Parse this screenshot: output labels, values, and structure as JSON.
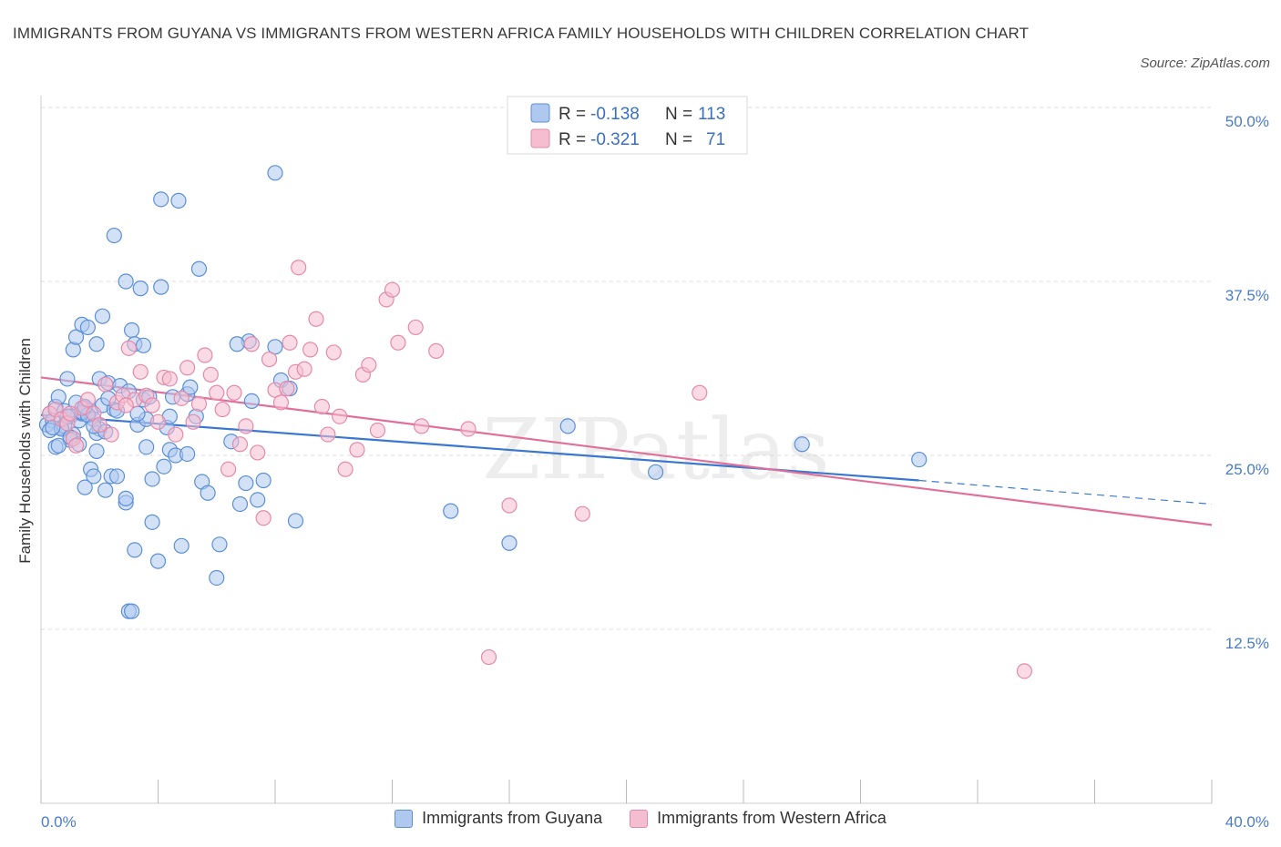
{
  "title": "IMMIGRANTS FROM GUYANA VS IMMIGRANTS FROM WESTERN AFRICA FAMILY HOUSEHOLDS WITH CHILDREN CORRELATION CHART",
  "source": "Source: ZipAtlas.com",
  "watermark": "ZIPatlas",
  "colors": {
    "guyana_fill": "#aec8f0",
    "guyana_stroke": "#5b8fd6",
    "guyana_line": "#3a78d0",
    "wafrica_fill": "#f5bdd0",
    "wafrica_stroke": "#e48aaa",
    "wafrica_line": "#e0709a",
    "tick_text": "#4a7cc9",
    "grid": "#dddddd"
  },
  "legend": {
    "r_label": "R =",
    "n_label": "N =",
    "guyana": {
      "r": "-0.138",
      "n": "113"
    },
    "wafrica": {
      "r": "-0.321",
      "n": "71"
    }
  },
  "chart_data": {
    "type": "scatter",
    "xlabel": "",
    "ylabel": "Family Households with Children",
    "xlim": [
      0,
      40
    ],
    "ylim": [
      0,
      50
    ],
    "x_tick_labels": [
      "0.0%",
      "40.0%"
    ],
    "y_tick_labels": [
      "12.5%",
      "25.0%",
      "37.5%",
      "50.0%"
    ],
    "y_ticks": [
      12.5,
      25.0,
      37.5,
      50.0
    ],
    "grid": "horizontal dashed",
    "legend_position": "top-center",
    "series": [
      {
        "name": "Immigrants from Guyana",
        "trend": {
          "x": [
            0,
            30
          ],
          "y": [
            27.9,
            23.2
          ],
          "dashed_extension_to": [
            40,
            21.5
          ]
        },
        "points": [
          [
            0.2,
            27.2
          ],
          [
            0.3,
            28.0
          ],
          [
            0.4,
            27.5
          ],
          [
            0.5,
            28.5
          ],
          [
            0.6,
            29.2
          ],
          [
            0.7,
            27.0
          ],
          [
            0.8,
            28.2
          ],
          [
            0.9,
            30.5
          ],
          [
            1.0,
            27.8
          ],
          [
            1.1,
            26.5
          ],
          [
            1.2,
            28.8
          ],
          [
            1.3,
            27.5
          ],
          [
            1.4,
            28.0
          ],
          [
            1.5,
            28.4
          ],
          [
            1.6,
            27.9
          ],
          [
            1.7,
            28.2
          ],
          [
            1.8,
            27.6
          ],
          [
            1.9,
            25.3
          ],
          [
            2.0,
            26.9
          ],
          [
            2.1,
            28.6
          ],
          [
            0.3,
            26.8
          ],
          [
            0.5,
            25.6
          ],
          [
            0.8,
            27.1
          ],
          [
            1.0,
            26.1
          ],
          [
            1.1,
            32.6
          ],
          [
            1.2,
            33.5
          ],
          [
            1.4,
            34.4
          ],
          [
            1.6,
            34.2
          ],
          [
            1.9,
            33.0
          ],
          [
            2.1,
            35.0
          ],
          [
            2.0,
            30.5
          ],
          [
            2.3,
            30.2
          ],
          [
            2.5,
            28.3
          ],
          [
            2.7,
            30.0
          ],
          [
            2.9,
            37.5
          ],
          [
            3.1,
            34.0
          ],
          [
            3.2,
            33.0
          ],
          [
            3.3,
            27.2
          ],
          [
            3.5,
            29.0
          ],
          [
            3.6,
            27.6
          ],
          [
            2.5,
            40.8
          ],
          [
            3.4,
            37.0
          ],
          [
            4.1,
            43.4
          ],
          [
            4.7,
            43.3
          ],
          [
            4.1,
            37.1
          ],
          [
            5.4,
            38.4
          ],
          [
            7.1,
            33.2
          ],
          [
            8.0,
            45.3
          ],
          [
            3.5,
            32.9
          ],
          [
            4.5,
            29.2
          ],
          [
            1.5,
            22.7
          ],
          [
            1.7,
            24.0
          ],
          [
            1.8,
            23.5
          ],
          [
            2.2,
            22.5
          ],
          [
            2.4,
            23.5
          ],
          [
            2.6,
            23.5
          ],
          [
            2.9,
            21.6
          ],
          [
            2.9,
            21.9
          ],
          [
            3.0,
            13.8
          ],
          [
            3.1,
            13.8
          ],
          [
            3.2,
            18.2
          ],
          [
            3.6,
            25.6
          ],
          [
            3.8,
            20.2
          ],
          [
            3.8,
            23.3
          ],
          [
            4.0,
            17.4
          ],
          [
            4.2,
            24.2
          ],
          [
            4.3,
            27.0
          ],
          [
            4.4,
            25.4
          ],
          [
            4.6,
            25.0
          ],
          [
            4.8,
            18.5
          ],
          [
            5.0,
            29.4
          ],
          [
            5.1,
            29.9
          ],
          [
            5.3,
            27.8
          ],
          [
            5.5,
            23.1
          ],
          [
            5.7,
            22.3
          ],
          [
            6.0,
            16.2
          ],
          [
            6.1,
            18.6
          ],
          [
            6.5,
            26.0
          ],
          [
            6.8,
            21.5
          ],
          [
            7.0,
            23.0
          ],
          [
            7.4,
            21.8
          ],
          [
            7.6,
            23.2
          ],
          [
            8.0,
            32.8
          ],
          [
            8.2,
            30.4
          ],
          [
            8.5,
            29.8
          ],
          [
            8.7,
            20.3
          ],
          [
            1.4,
            28.1
          ],
          [
            1.6,
            27.9
          ],
          [
            1.9,
            26.6
          ],
          [
            2.3,
            29.1
          ],
          [
            0.6,
            25.7
          ],
          [
            0.7,
            26.9
          ],
          [
            0.9,
            27.8
          ],
          [
            1.0,
            26.3
          ],
          [
            1.3,
            25.8
          ],
          [
            1.5,
            28.5
          ],
          [
            1.8,
            27.1
          ],
          [
            2.2,
            26.7
          ],
          [
            2.6,
            28.2
          ],
          [
            3.0,
            29.6
          ],
          [
            3.3,
            28.0
          ],
          [
            3.7,
            29.2
          ],
          [
            4.4,
            27.8
          ],
          [
            5.0,
            25.1
          ],
          [
            6.7,
            33.0
          ],
          [
            7.2,
            28.9
          ],
          [
            14.0,
            21.0
          ],
          [
            16.0,
            18.7
          ],
          [
            18.0,
            27.1
          ],
          [
            21.0,
            23.8
          ],
          [
            26.0,
            25.8
          ],
          [
            30.0,
            24.7
          ],
          [
            0.4,
            27.0
          ]
        ]
      },
      {
        "name": "Immigrants from Western Africa",
        "trend": {
          "x": [
            0,
            40
          ],
          "y": [
            30.6,
            20.0
          ]
        },
        "points": [
          [
            0.3,
            28.0
          ],
          [
            0.5,
            28.3
          ],
          [
            0.7,
            27.6
          ],
          [
            0.9,
            27.3
          ],
          [
            1.1,
            26.2
          ],
          [
            1.2,
            25.7
          ],
          [
            1.4,
            28.4
          ],
          [
            1.6,
            29.0
          ],
          [
            1.8,
            28.0
          ],
          [
            2.0,
            27.2
          ],
          [
            2.2,
            30.1
          ],
          [
            2.4,
            26.5
          ],
          [
            2.6,
            28.8
          ],
          [
            2.8,
            29.3
          ],
          [
            3.0,
            32.7
          ],
          [
            3.2,
            29.0
          ],
          [
            3.4,
            31.0
          ],
          [
            3.6,
            29.3
          ],
          [
            3.8,
            28.6
          ],
          [
            4.0,
            27.4
          ],
          [
            4.2,
            30.6
          ],
          [
            4.4,
            30.5
          ],
          [
            4.6,
            26.5
          ],
          [
            4.8,
            29.1
          ],
          [
            5.0,
            31.3
          ],
          [
            5.2,
            27.4
          ],
          [
            5.4,
            28.7
          ],
          [
            5.6,
            32.2
          ],
          [
            5.8,
            30.8
          ],
          [
            6.0,
            29.5
          ],
          [
            6.2,
            28.3
          ],
          [
            6.4,
            24.0
          ],
          [
            6.6,
            29.5
          ],
          [
            6.8,
            25.8
          ],
          [
            7.0,
            27.1
          ],
          [
            7.2,
            33.0
          ],
          [
            7.4,
            25.2
          ],
          [
            7.6,
            20.5
          ],
          [
            7.8,
            31.9
          ],
          [
            8.0,
            29.7
          ],
          [
            8.2,
            28.8
          ],
          [
            8.4,
            29.8
          ],
          [
            8.5,
            33.1
          ],
          [
            8.7,
            31.0
          ],
          [
            8.8,
            38.5
          ],
          [
            9.0,
            31.2
          ],
          [
            9.2,
            32.6
          ],
          [
            9.4,
            34.8
          ],
          [
            9.6,
            28.5
          ],
          [
            9.8,
            26.5
          ],
          [
            10.0,
            32.4
          ],
          [
            10.2,
            27.8
          ],
          [
            10.4,
            24.0
          ],
          [
            10.8,
            25.4
          ],
          [
            11.0,
            30.8
          ],
          [
            11.2,
            31.5
          ],
          [
            11.5,
            26.8
          ],
          [
            11.8,
            36.2
          ],
          [
            12.0,
            36.9
          ],
          [
            12.2,
            33.1
          ],
          [
            12.8,
            34.2
          ],
          [
            13.0,
            27.1
          ],
          [
            13.5,
            32.5
          ],
          [
            14.6,
            26.9
          ],
          [
            15.3,
            10.5
          ],
          [
            16.0,
            21.4
          ],
          [
            18.5,
            20.8
          ],
          [
            22.5,
            29.5
          ],
          [
            33.6,
            9.5
          ],
          [
            1.0,
            28.0
          ],
          [
            2.9,
            28.6
          ]
        ]
      }
    ]
  },
  "bottom_legend": {
    "guyana": "Immigrants from Guyana",
    "wafrica": "Immigrants from Western Africa"
  }
}
